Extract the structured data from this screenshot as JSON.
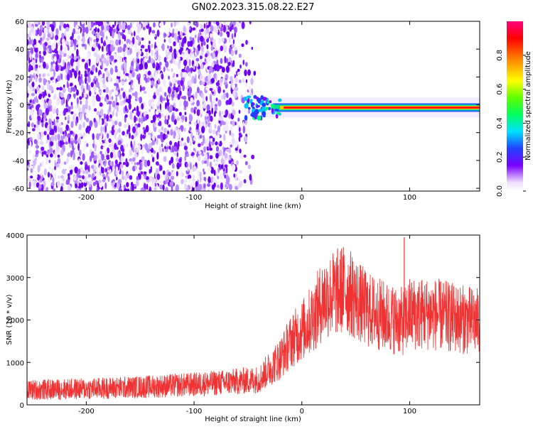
{
  "title": "GN02.2023.315.08.22.E27",
  "chart_data": [
    {
      "type": "heatmap",
      "xlabel": "Height of straight line (km)",
      "ylabel": "Frequency (Hz)",
      "xlim": [
        -255,
        165
      ],
      "ylim": [
        -62,
        60
      ],
      "x_ticks": [
        -200,
        -100,
        0,
        100
      ],
      "x_tick_labels": [
        "-200",
        "-100",
        "0",
        "100"
      ],
      "y_ticks": [
        60,
        40,
        20,
        0,
        -20,
        -40,
        -60
      ],
      "y_tick_labels": [
        "60",
        "40",
        "20",
        "0",
        "-20",
        "-40",
        "-60"
      ],
      "colorbar": {
        "label": "Normalized spectral amplitude",
        "range": [
          0,
          1
        ],
        "ticks": [
          0.0,
          0.2,
          0.4,
          0.6,
          0.8
        ],
        "tick_labels": [
          "0.0",
          "0.2",
          "0.4",
          "0.6",
          "0.8"
        ]
      },
      "features": [
        {
          "name": "noise",
          "x_range": [
            -255,
            -40
          ],
          "f_range": [
            -62,
            60
          ],
          "amplitude": 0.25
        },
        {
          "name": "carrier",
          "x_range": [
            -40,
            165
          ],
          "f_center": -2,
          "amplitude": 1.0
        }
      ]
    },
    {
      "type": "line",
      "xlabel": "Height of straight line (km)",
      "ylabel": "SNR (10 * v/v)",
      "xlim": [
        -255,
        165
      ],
      "ylim": [
        0,
        4000
      ],
      "x_ticks": [
        -200,
        -100,
        0,
        100
      ],
      "x_tick_labels": [
        "-200",
        "-100",
        "0",
        "100"
      ],
      "y_ticks": [
        0,
        1000,
        2000,
        3000,
        4000
      ],
      "y_tick_labels": [
        "0",
        "1000",
        "2000",
        "3000",
        "4000"
      ],
      "color": "#f03232",
      "series": [
        {
          "x": [
            -255,
            -200,
            -150,
            -100,
            -60,
            -40,
            -20,
            -10,
            0,
            10,
            20,
            40,
            60,
            80,
            95,
            100,
            120,
            140,
            165
          ],
          "y": [
            350,
            380,
            420,
            480,
            550,
            600,
            1100,
            1500,
            1750,
            2050,
            2500,
            2750,
            2250,
            2050,
            1950,
            2150,
            2150,
            2050,
            1950
          ]
        }
      ],
      "spike": {
        "x": 95,
        "y": 3950
      }
    }
  ]
}
